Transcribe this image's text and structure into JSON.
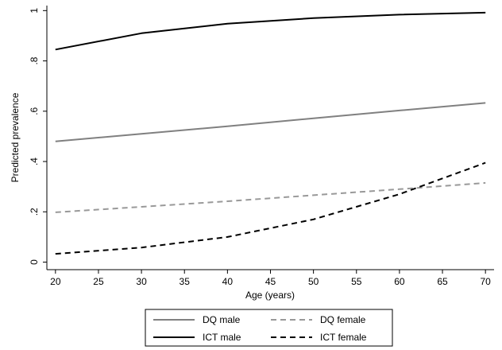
{
  "chart_data": {
    "type": "line",
    "xlabel": "Age (years)",
    "ylabel": "Predicted prevalence",
    "xlim": [
      19,
      71
    ],
    "ylim": [
      -0.03,
      1.02
    ],
    "x_ticks": [
      20,
      25,
      30,
      35,
      40,
      45,
      50,
      55,
      60,
      65,
      70
    ],
    "x_tick_labels": [
      "20",
      "25",
      "30",
      "35",
      "40",
      "45",
      "50",
      "55",
      "60",
      "65",
      "70"
    ],
    "y_ticks": [
      0,
      0.2,
      0.4,
      0.6,
      0.8,
      1
    ],
    "y_tick_labels": [
      "0",
      ".2",
      ".4",
      ".6",
      ".8",
      "1"
    ],
    "grid": false,
    "legend_position": "bottom",
    "x": [
      20,
      30,
      40,
      50,
      60,
      70
    ],
    "series": [
      {
        "name": "DQ male",
        "values": [
          0.48,
          0.51,
          0.54,
          0.572,
          0.603,
          0.633
        ],
        "color": "#808080",
        "dash": "solid"
      },
      {
        "name": "DQ female",
        "values": [
          0.198,
          0.22,
          0.242,
          0.266,
          0.29,
          0.315
        ],
        "color": "#999999",
        "dash": "dashed"
      },
      {
        "name": "ICT male",
        "values": [
          0.845,
          0.91,
          0.948,
          0.97,
          0.984,
          0.992
        ],
        "color": "#000000",
        "dash": "solid"
      },
      {
        "name": "ICT female",
        "values": [
          0.033,
          0.058,
          0.1,
          0.17,
          0.27,
          0.395
        ],
        "color": "#000000",
        "dash": "dashed"
      }
    ],
    "legend_order": [
      "DQ male",
      "DQ female",
      "ICT male",
      "ICT female"
    ]
  }
}
